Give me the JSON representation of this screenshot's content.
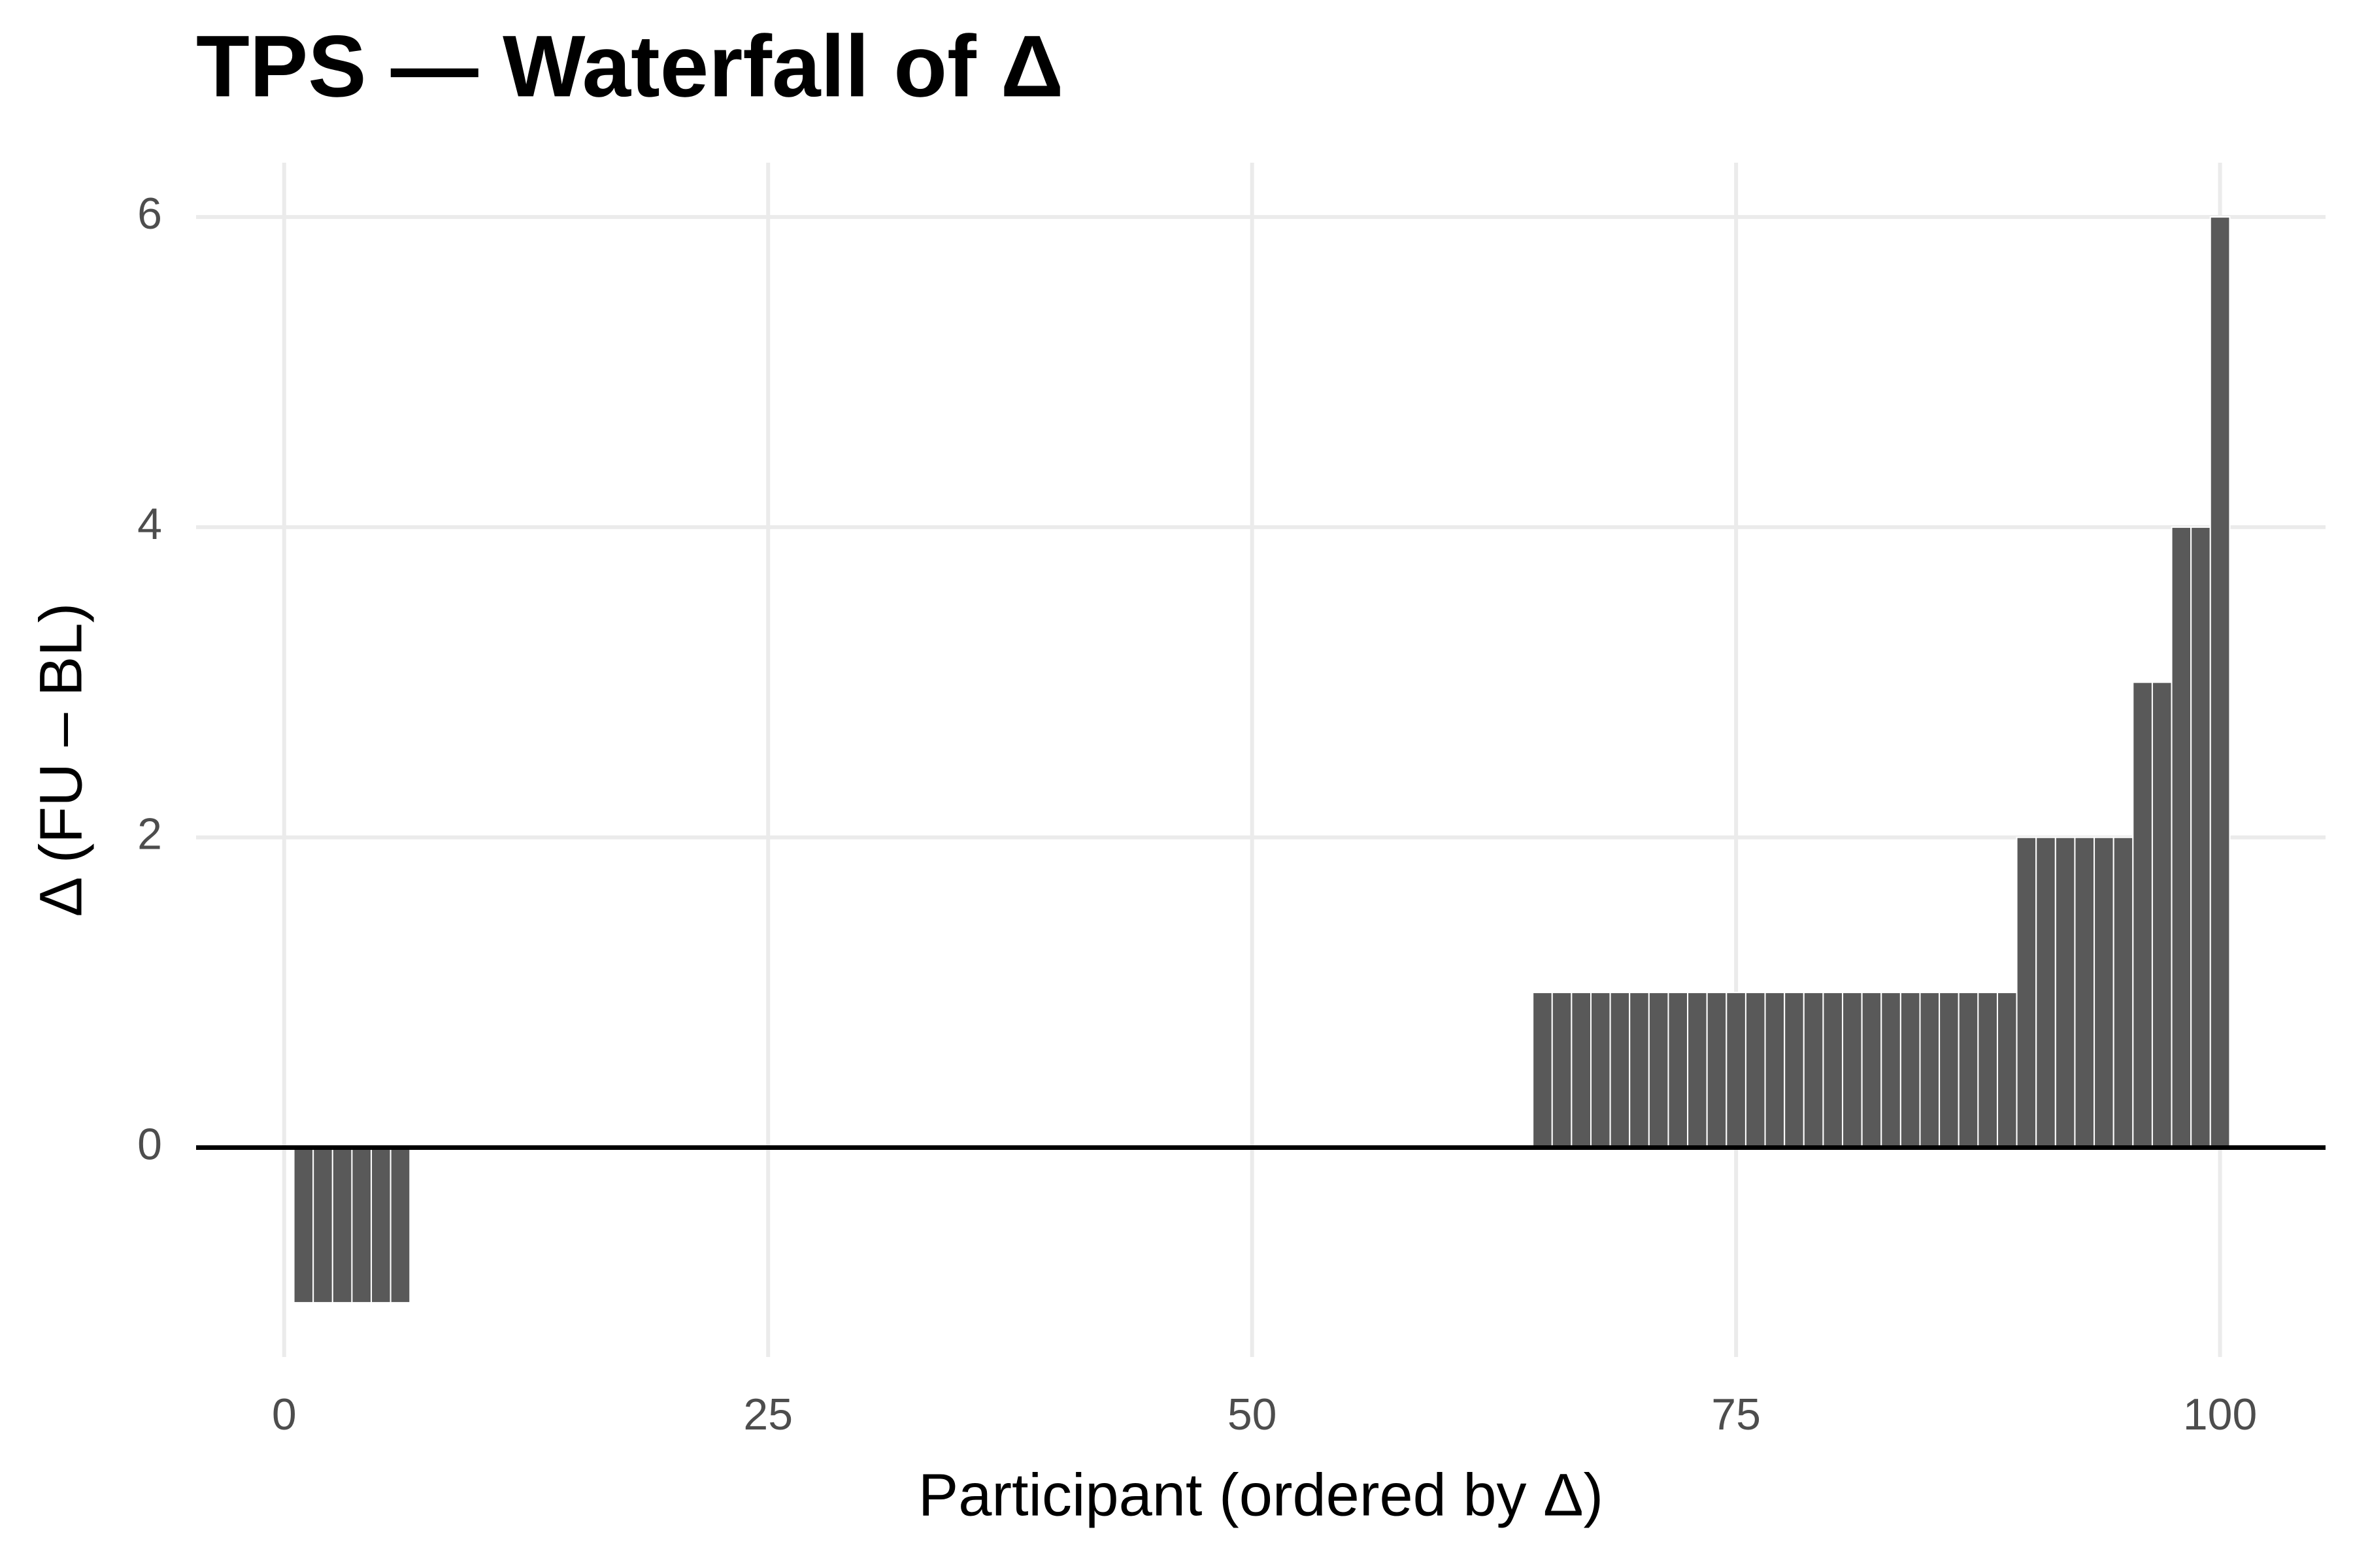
{
  "chart_data": {
    "type": "bar",
    "title": "TPS — Waterfall of Δ",
    "x_label": "Participant (ordered by Δ)",
    "y_label": "Δ (FU – BL)",
    "x": [
      1,
      2,
      3,
      4,
      5,
      6,
      7,
      8,
      9,
      10,
      11,
      12,
      13,
      14,
      15,
      16,
      17,
      18,
      19,
      20,
      21,
      22,
      23,
      24,
      25,
      26,
      27,
      28,
      29,
      30,
      31,
      32,
      33,
      34,
      35,
      36,
      37,
      38,
      39,
      40,
      41,
      42,
      43,
      44,
      45,
      46,
      47,
      48,
      49,
      50,
      51,
      52,
      53,
      54,
      55,
      56,
      57,
      58,
      59,
      60,
      61,
      62,
      63,
      64,
      65,
      66,
      67,
      68,
      69,
      70,
      71,
      72,
      73,
      74,
      75,
      76,
      77,
      78,
      79,
      80,
      81,
      82,
      83,
      84,
      85,
      86,
      87,
      88,
      89,
      90,
      91,
      92,
      93,
      94,
      95,
      96,
      97,
      98,
      99,
      100
    ],
    "values": [
      -1,
      -1,
      -1,
      -1,
      -1,
      -1,
      0,
      0,
      0,
      0,
      0,
      0,
      0,
      0,
      0,
      0,
      0,
      0,
      0,
      0,
      0,
      0,
      0,
      0,
      0,
      0,
      0,
      0,
      0,
      0,
      0,
      0,
      0,
      0,
      0,
      0,
      0,
      0,
      0,
      0,
      0,
      0,
      0,
      0,
      0,
      0,
      0,
      0,
      0,
      0,
      0,
      0,
      0,
      0,
      0,
      0,
      0,
      0,
      0,
      0,
      0,
      0,
      0,
      0,
      1,
      1,
      1,
      1,
      1,
      1,
      1,
      1,
      1,
      1,
      1,
      1,
      1,
      1,
      1,
      1,
      1,
      1,
      1,
      1,
      1,
      1,
      1,
      1,
      1,
      2,
      2,
      2,
      2,
      2,
      2,
      3,
      3,
      4,
      4,
      6
    ],
    "color": "#595959",
    "xlim": [
      -4.55,
      105.45
    ],
    "xticks": [
      0,
      25,
      50,
      75,
      100
    ],
    "ylim": [
      -1.35,
      6.35
    ],
    "yticks": [
      0,
      2,
      4,
      6
    ],
    "grid": true
  }
}
